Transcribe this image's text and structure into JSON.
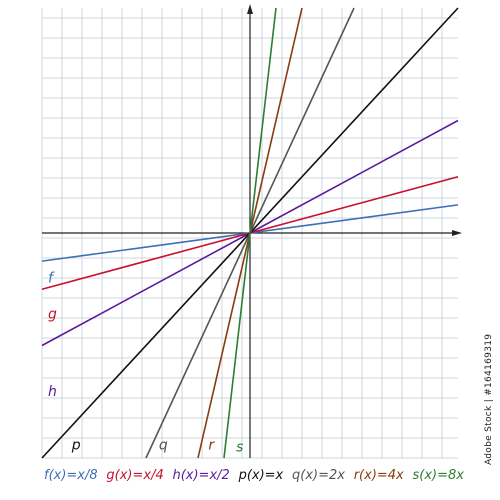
{
  "chart_data": {
    "type": "line",
    "title": "",
    "xlabel": "",
    "ylabel": "",
    "xlim": [
      -10.5,
      10.5
    ],
    "ylim": [
      -10.5,
      10.5
    ],
    "grid": true,
    "series": [
      {
        "name": "f",
        "formula": "f(x)=x/8",
        "slope": 0.125,
        "color": "#3b6fb6"
      },
      {
        "name": "g",
        "formula": "g(x)=x/4",
        "slope": 0.25,
        "color": "#c8102e"
      },
      {
        "name": "h",
        "formula": "h(x)=x/2",
        "slope": 0.5,
        "color": "#5a1a9a"
      },
      {
        "name": "p",
        "formula": "p(x)=x",
        "slope": 1,
        "color": "#111111"
      },
      {
        "name": "q",
        "formula": "q(x)=2x",
        "slope": 2,
        "color": "#555555"
      },
      {
        "name": "r",
        "formula": "r(x)=4x",
        "slope": 4,
        "color": "#8b3a0f"
      },
      {
        "name": "s",
        "formula": "s(x)=8x",
        "slope": 8,
        "color": "#2e7d32"
      }
    ]
  },
  "stock_id": "Adobe Stock | #164169319"
}
